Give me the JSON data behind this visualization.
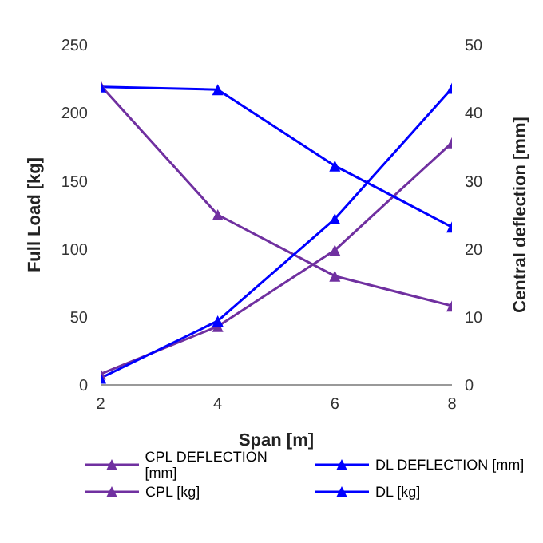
{
  "chart_data": {
    "type": "line",
    "xlabel": "Span [m]",
    "ylabel": "Full Load [kg]",
    "y2label": "Central deflection [mm]",
    "x": [
      2,
      4,
      6,
      8
    ],
    "series": [
      {
        "name": "CPL [kg]",
        "color": "#7030a0",
        "values": [
          220,
          125,
          80,
          58
        ]
      },
      {
        "name": "CPL DEFLECTION [mm]",
        "color": "#7030a0",
        "values": [
          1.6,
          8.6,
          19.8,
          35.6
        ],
        "axis": "y2"
      },
      {
        "name": "DL [kg]",
        "color": "#0000ff",
        "values": [
          219,
          217,
          161,
          116
        ]
      },
      {
        "name": "DL DEFLECTION [mm]",
        "color": "#0000ff",
        "values": [
          1,
          9.4,
          24.4,
          43.6
        ],
        "axis": "y2"
      }
    ],
    "xlim": [
      2,
      8
    ],
    "xticks": [
      2,
      4,
      6,
      8
    ],
    "ylim": [
      0,
      250
    ],
    "yticks": [
      0,
      50,
      100,
      150,
      200,
      250
    ],
    "y2lim": [
      0,
      50
    ],
    "y2ticks": [
      0,
      10,
      20,
      30,
      40,
      50
    ],
    "grid": false,
    "legend": "bottom",
    "marker": "triangle",
    "line_style": "solid"
  }
}
